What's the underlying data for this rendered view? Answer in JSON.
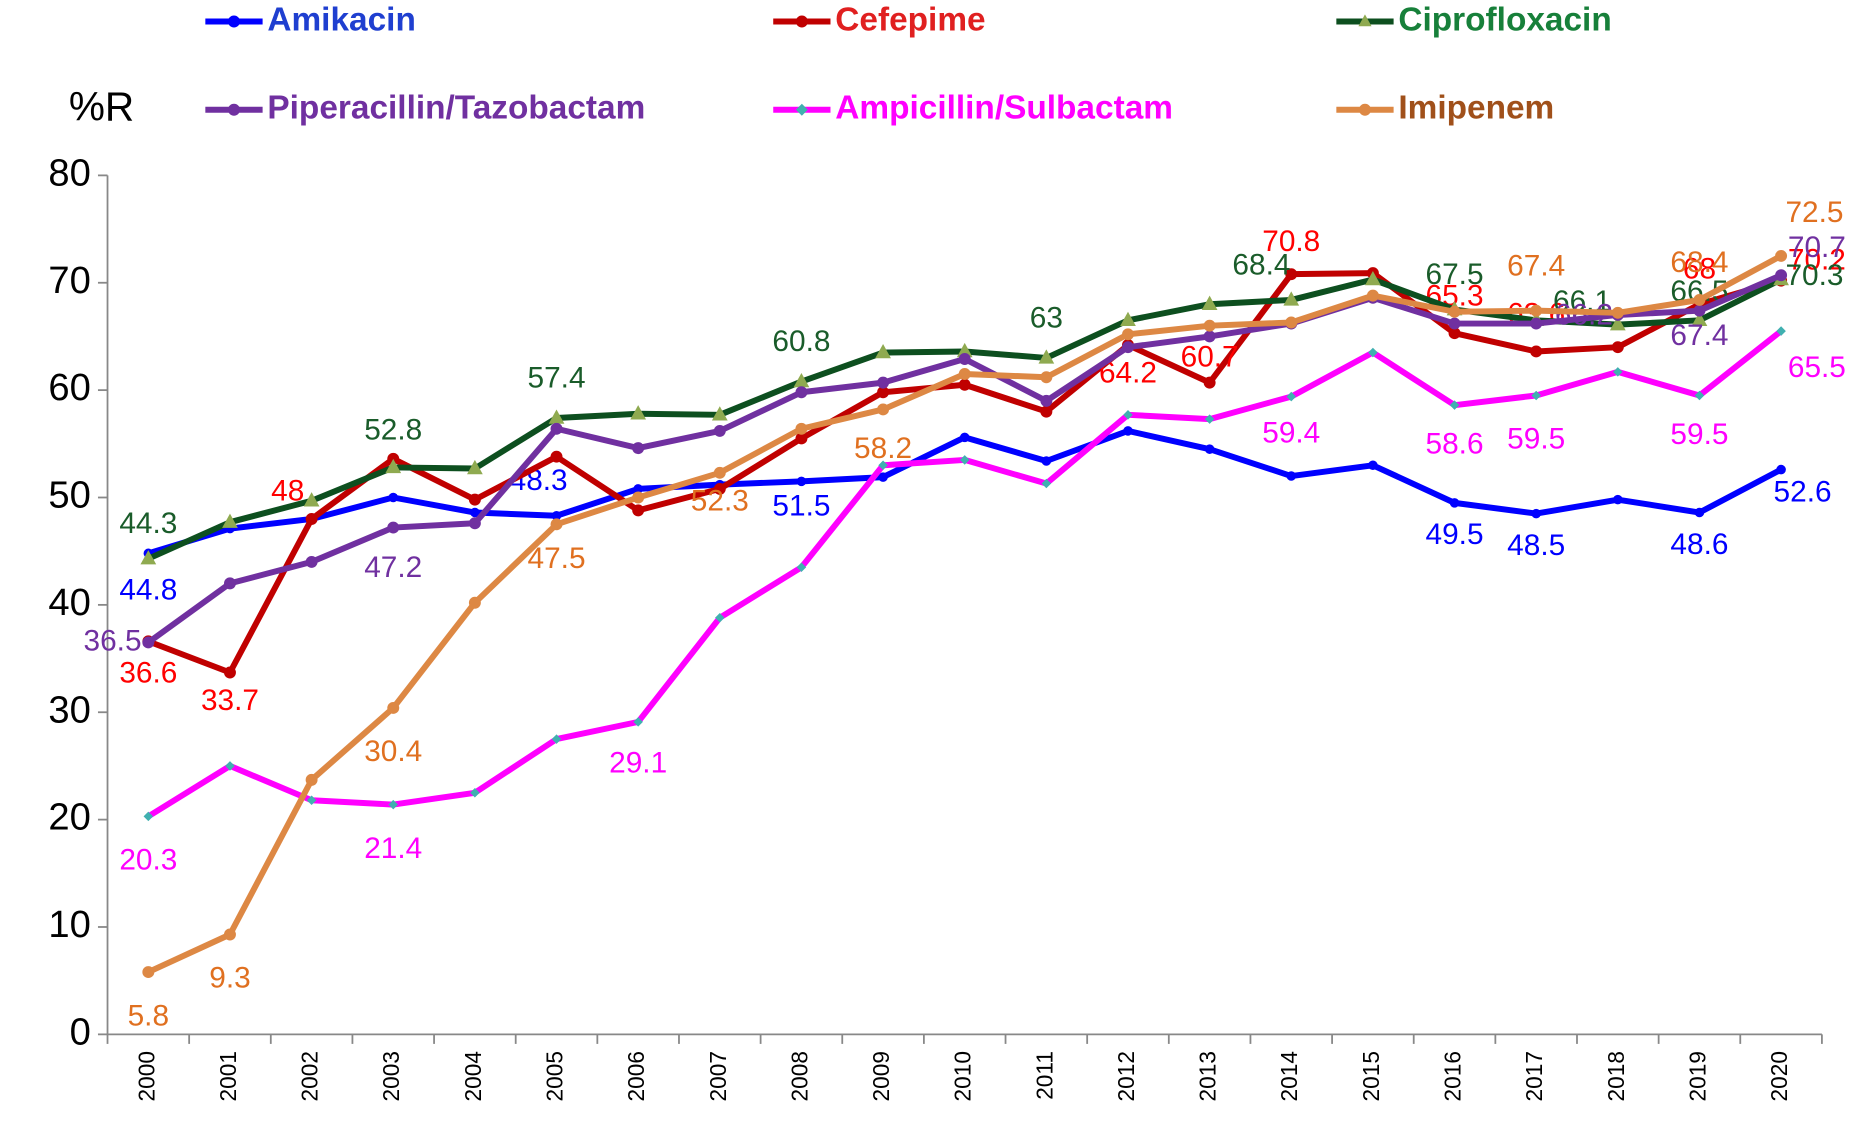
{
  "chart_data": {
    "type": "line",
    "ylabel": "%R",
    "categories": [
      "2000",
      "2001",
      "2002",
      "2003",
      "2004",
      "2005",
      "2006",
      "2007",
      "2008",
      "2009",
      "2010",
      "2011",
      "2012",
      "2013",
      "2014",
      "2015",
      "2016",
      "2017",
      "2018",
      "2019",
      "2020"
    ],
    "ylim": [
      0,
      80
    ],
    "yticks": [
      0,
      10,
      20,
      30,
      40,
      50,
      60,
      70,
      80
    ],
    "grid": false,
    "series": [
      {
        "name": "Amikacin",
        "color": "#0000ff",
        "label_color": "#0000ff",
        "legend_color": "#1f3fd0",
        "marker": "circle",
        "values": [
          44.8,
          47.1,
          48,
          50,
          48.6,
          48.3,
          50.8,
          51.2,
          51.5,
          51.9,
          55.6,
          53.4,
          56.2,
          54.5,
          52,
          53,
          49.5,
          48.5,
          49.8,
          48.6,
          52.6
        ],
        "value_labels": [
          "44.8",
          null,
          null,
          null,
          null,
          "48.3",
          null,
          null,
          "51.5",
          null,
          null,
          null,
          null,
          null,
          null,
          null,
          "49.5",
          "48.5",
          null,
          "48.6",
          "52.6"
        ]
      },
      {
        "name": "Cefepime",
        "color": "#c00000",
        "label_color": "#ff0000",
        "legend_color": "#e02020",
        "marker": "circle",
        "values": [
          36.6,
          33.7,
          48,
          53.6,
          49.8,
          53.8,
          48.8,
          50.8,
          55.5,
          59.8,
          60.5,
          58,
          64.2,
          60.7,
          70.8,
          70.9,
          65.3,
          63.6,
          64,
          68,
          70.2
        ],
        "value_labels": [
          "36.6",
          "33.7",
          "48",
          null,
          null,
          null,
          null,
          null,
          null,
          null,
          null,
          null,
          "64.2",
          "60.7",
          "70.8",
          null,
          "65.3",
          "63.6",
          null,
          "68",
          "70.2"
        ]
      },
      {
        "name": "Ciprofloxacin",
        "color": "#0d4f1f",
        "label_color": "#1a5c2a",
        "legend_color": "#17803a",
        "marker": "triangle",
        "marker_color": "#8faa50",
        "values": [
          44.3,
          47.7,
          49.7,
          52.8,
          52.7,
          57.4,
          57.8,
          57.7,
          60.8,
          63.5,
          63.6,
          63,
          66.5,
          68,
          68.4,
          70.3,
          67.5,
          66.5,
          66.1,
          66.5,
          70.3
        ],
        "value_labels": [
          "44.3",
          null,
          null,
          "52.8",
          null,
          "57.4",
          null,
          null,
          "60.8",
          null,
          null,
          "63",
          null,
          null,
          "68.4",
          null,
          "67.5",
          null,
          "66.1",
          "66.5",
          "70.3"
        ]
      },
      {
        "name": "Piperacillin/Tazobactam",
        "color": "#7030a0",
        "label_color": "#7030a0",
        "legend_color": "#7030a0",
        "marker": "circle",
        "values": [
          36.5,
          42,
          44,
          47.2,
          47.6,
          56.4,
          54.6,
          56.2,
          59.8,
          60.7,
          62.9,
          59,
          64,
          65,
          66.2,
          68.6,
          66.2,
          66.2,
          67,
          67.4,
          70.7
        ],
        "value_labels": [
          "36.5",
          null,
          null,
          "47.2",
          null,
          null,
          null,
          null,
          null,
          null,
          null,
          null,
          null,
          null,
          null,
          null,
          null,
          "66.2",
          null,
          "67.4",
          "70.7"
        ]
      },
      {
        "name": "Ampicillin/Sulbactam",
        "color": "#ff00ff",
        "label_color": "#ff00ff",
        "legend_color": "#ff00ff",
        "marker": "diamond",
        "marker_color": "#40b0b0",
        "values": [
          20.3,
          25,
          21.8,
          21.4,
          22.5,
          27.5,
          29.1,
          38.8,
          43.5,
          53,
          53.5,
          51.3,
          57.7,
          57.3,
          59.4,
          63.5,
          58.6,
          59.5,
          61.7,
          59.5,
          65.5
        ],
        "value_labels": [
          "20.3",
          null,
          null,
          "21.4",
          null,
          null,
          "29.1",
          null,
          null,
          null,
          null,
          null,
          null,
          null,
          "59.4",
          null,
          "58.6",
          "59.5",
          null,
          "59.5",
          "65.5"
        ]
      },
      {
        "name": "Imipenem",
        "color": "#dd8844",
        "label_color": "#e07020",
        "legend_color": "#a0501a",
        "marker": "circle",
        "values": [
          5.8,
          9.3,
          23.7,
          30.4,
          40.2,
          47.5,
          50,
          52.3,
          56.4,
          58.2,
          61.5,
          61.2,
          65.2,
          66,
          66.3,
          68.8,
          67.3,
          67.4,
          67.2,
          68.4,
          72.5
        ],
        "value_labels": [
          "5.8",
          "9.3",
          null,
          "30.4",
          null,
          "47.5",
          null,
          "52.3",
          null,
          "58.2",
          null,
          null,
          null,
          null,
          null,
          null,
          null,
          "67.4",
          null,
          "68.4",
          "72.5"
        ]
      }
    ]
  }
}
